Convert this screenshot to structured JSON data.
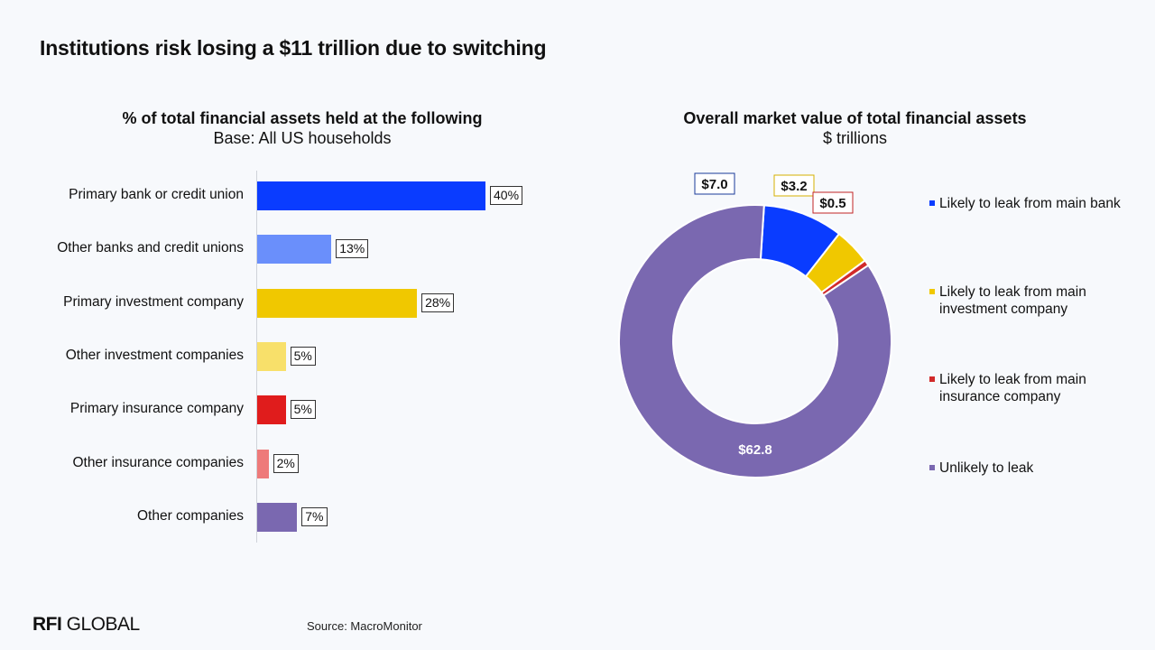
{
  "title": "Institutions risk losing a $11 trillion due to switching",
  "source": "Source: MacroMonitor",
  "logo": {
    "bold": "RFI",
    "rest": " GLOBAL"
  },
  "chart_data": [
    {
      "type": "bar",
      "orientation": "horizontal",
      "title": "% of total financial assets held at the following",
      "subtitle": "Base: All US households",
      "categories": [
        "Primary bank or credit union",
        "Other banks and credit unions",
        "Primary investment company",
        "Other investment companies",
        "Primary insurance company",
        "Other insurance companies",
        "Other companies"
      ],
      "values": [
        40,
        13,
        28,
        5,
        5,
        2,
        7
      ],
      "value_labels": [
        "40%",
        "13%",
        "28%",
        "5%",
        "5%",
        "2%",
        "7%"
      ],
      "colors": [
        "#0a3cff",
        "#6a8ffb",
        "#f0c800",
        "#f8e06a",
        "#e01c1c",
        "#ee7a7a",
        "#7a68b0"
      ],
      "xlim": [
        0,
        60
      ],
      "grid": false
    },
    {
      "type": "pie",
      "donut": true,
      "title": "Overall market value of total financial assets",
      "subtitle": "$ trillions",
      "labels": [
        "Likely to leak from main bank",
        "Likely to leak from main investment company",
        "Likely to leak from main insurance company",
        "Unlikely to leak"
      ],
      "values": [
        7.0,
        3.2,
        0.5,
        62.8
      ],
      "value_labels": [
        "$7.0",
        "$3.2",
        "$0.5",
        "$62.8"
      ],
      "colors": [
        "#0a3cff",
        "#f0c800",
        "#d12a2a",
        "#7a68b0"
      ],
      "legend_position": "right"
    }
  ]
}
